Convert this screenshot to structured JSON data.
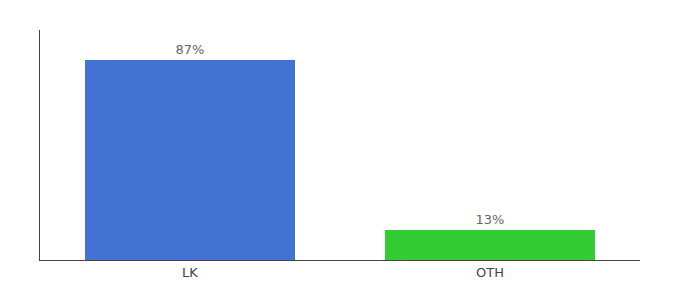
{
  "chart_data": {
    "type": "bar",
    "categories": [
      "LK",
      "OTH"
    ],
    "values": [
      87,
      13
    ],
    "value_labels": [
      "87%",
      "13%"
    ],
    "colors": [
      "#4472d4",
      "#33cc33"
    ],
    "ylim": [
      0,
      100
    ],
    "grid": false,
    "data_labels": true,
    "tick_labels": "x"
  }
}
